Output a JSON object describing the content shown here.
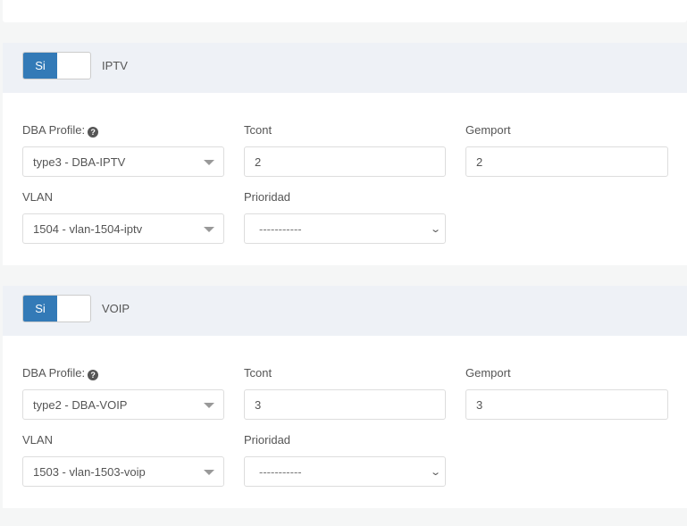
{
  "sections": [
    {
      "toggle_label": "Si",
      "title": "IPTV",
      "dba_label": "DBA Profile:",
      "help_icon": "question-circle-icon",
      "dba_value": "type3 - DBA-IPTV",
      "tcont_label": "Tcont",
      "tcont_value": "2",
      "gemport_label": "Gemport",
      "gemport_value": "2",
      "vlan_label": "VLAN",
      "vlan_value": "1504 - vlan-1504-iptv",
      "prioridad_label": "Prioridad",
      "prioridad_value": "-----------"
    },
    {
      "toggle_label": "Si",
      "title": "VOIP",
      "dba_label": "DBA Profile:",
      "help_icon": "question-circle-icon",
      "dba_value": "type2 - DBA-VOIP",
      "tcont_label": "Tcont",
      "tcont_value": "3",
      "gemport_label": "Gemport",
      "gemport_value": "3",
      "vlan_label": "VLAN",
      "vlan_value": "1503 - vlan-1503-voip",
      "prioridad_label": "Prioridad",
      "prioridad_value": "-----------"
    }
  ],
  "colors": {
    "toggle_on": "#337ab7",
    "header_bg": "#eef1f6"
  }
}
